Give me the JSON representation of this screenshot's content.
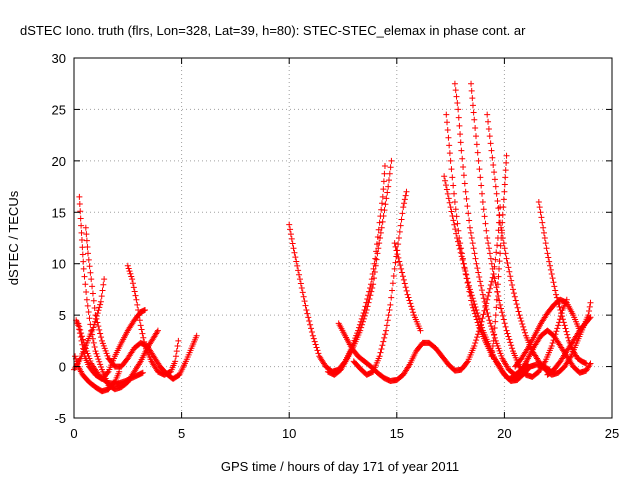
{
  "chart_data": {
    "type": "scatter",
    "title": "dSTEC Iono. truth (flrs, Lon=328, Lat=39, h=80): STEC-STEC_elemax in phase cont. ar",
    "xlabel": "GPS time / hours of day 171 of year 2011",
    "ylabel": "dSTEC  / TECUs",
    "xlim": [
      0,
      25
    ],
    "ylim": [
      -5,
      30
    ],
    "xticks": [
      0,
      5,
      10,
      15,
      20,
      25
    ],
    "yticks": [
      -5,
      0,
      5,
      10,
      15,
      20,
      25,
      30
    ],
    "grid": true,
    "marker": "+",
    "color": "#ff0000",
    "series": [
      {
        "points": [
          [
            0.1,
            4.5
          ],
          [
            0.2,
            4.0
          ],
          [
            0.35,
            2.5
          ],
          [
            0.5,
            1.0
          ],
          [
            0.7,
            0.0
          ],
          [
            1.0,
            -0.8
          ],
          [
            1.3,
            -1.2
          ],
          [
            1.6,
            -0.5
          ],
          [
            1.9,
            1.0
          ],
          [
            2.2,
            2.3
          ],
          [
            2.5,
            3.5
          ],
          [
            2.8,
            4.5
          ],
          [
            3.1,
            5.3
          ],
          [
            3.3,
            5.5
          ]
        ]
      },
      {
        "points": [
          [
            0.25,
            16.5
          ],
          [
            0.35,
            13.0
          ],
          [
            0.45,
            9.5
          ],
          [
            0.6,
            6.5
          ],
          [
            0.8,
            3.5
          ],
          [
            1.0,
            1.5
          ],
          [
            1.3,
            -0.3
          ],
          [
            1.6,
            -1.8
          ],
          [
            1.9,
            -2.2
          ],
          [
            2.2,
            -2.0
          ],
          [
            2.5,
            -1.5
          ],
          [
            2.8,
            -0.5
          ],
          [
            3.1,
            0.5
          ],
          [
            3.4,
            1.8
          ],
          [
            3.7,
            2.8
          ],
          [
            3.9,
            3.5
          ]
        ]
      },
      {
        "points": [
          [
            0.55,
            13.5
          ],
          [
            0.65,
            11.0
          ],
          [
            0.8,
            8.5
          ],
          [
            1.0,
            5.0
          ],
          [
            1.3,
            2.5
          ],
          [
            1.6,
            0.8
          ],
          [
            1.9,
            0.0
          ],
          [
            2.2,
            0.0
          ],
          [
            2.5,
            0.8
          ],
          [
            2.8,
            1.8
          ],
          [
            3.1,
            2.3
          ],
          [
            3.4,
            2.0
          ],
          [
            3.7,
            1.0
          ],
          [
            4.0,
            0.0
          ],
          [
            4.3,
            -0.7
          ],
          [
            4.6,
            -1.2
          ],
          [
            4.9,
            -0.8
          ],
          [
            5.2,
            0.5
          ],
          [
            5.5,
            2.0
          ],
          [
            5.7,
            3.0
          ]
        ]
      },
      {
        "points": [
          [
            0.05,
            1.0
          ],
          [
            0.2,
            0.0
          ],
          [
            0.4,
            -0.8
          ],
          [
            0.7,
            -1.5
          ],
          [
            1.0,
            -2.0
          ],
          [
            1.3,
            -2.4
          ],
          [
            1.6,
            -2.2
          ],
          [
            1.9,
            -1.5
          ],
          [
            2.1,
            -0.5
          ]
        ]
      },
      {
        "points": [
          [
            0.0,
            -0.3
          ],
          [
            0.3,
            0.8
          ],
          [
            0.6,
            2.3
          ],
          [
            0.9,
            3.8
          ],
          [
            1.1,
            5.2
          ],
          [
            1.25,
            6.3
          ],
          [
            1.4,
            8.5
          ]
        ]
      },
      {
        "points": [
          [
            2.5,
            9.8
          ],
          [
            2.7,
            8.5
          ],
          [
            2.9,
            6.5
          ],
          [
            3.1,
            4.0
          ],
          [
            3.3,
            2.0
          ],
          [
            3.6,
            0.5
          ],
          [
            3.9,
            -0.5
          ],
          [
            4.2,
            -0.8
          ],
          [
            4.5,
            -0.5
          ],
          [
            4.7,
            0.5
          ],
          [
            4.85,
            2.5
          ]
        ]
      },
      {
        "points": [
          [
            0.2,
            4.2
          ],
          [
            0.5,
            2.0
          ],
          [
            0.8,
            0.3
          ],
          [
            1.2,
            -1.0
          ],
          [
            1.6,
            -1.6
          ],
          [
            2.0,
            -1.7
          ],
          [
            2.4,
            -1.4
          ],
          [
            2.8,
            -1.0
          ],
          [
            3.2,
            -0.6
          ]
        ]
      },
      {
        "points": [
          [
            10.0,
            13.8
          ],
          [
            10.2,
            11.5
          ],
          [
            10.5,
            8.5
          ],
          [
            10.8,
            5.5
          ],
          [
            11.1,
            3.0
          ],
          [
            11.4,
            1.0
          ],
          [
            11.7,
            0.0
          ],
          [
            12.0,
            -0.5
          ],
          [
            12.3,
            -0.3
          ],
          [
            12.6,
            0.5
          ],
          [
            12.9,
            1.8
          ],
          [
            13.2,
            3.5
          ],
          [
            13.5,
            5.5
          ],
          [
            13.8,
            8.0
          ],
          [
            14.0,
            10.5
          ],
          [
            14.2,
            14.0
          ],
          [
            14.35,
            16.5
          ],
          [
            14.45,
            19.5
          ]
        ]
      },
      {
        "points": [
          [
            12.3,
            4.2
          ],
          [
            12.6,
            3.0
          ],
          [
            12.9,
            1.8
          ],
          [
            13.2,
            1.0
          ],
          [
            13.5,
            0.5
          ],
          [
            13.8,
            0.0
          ],
          [
            14.1,
            -0.6
          ],
          [
            14.4,
            -1.1
          ],
          [
            14.7,
            -1.4
          ],
          [
            15.0,
            -1.3
          ],
          [
            15.3,
            -0.8
          ],
          [
            15.6,
            0.2
          ],
          [
            15.9,
            1.5
          ],
          [
            16.2,
            2.3
          ],
          [
            16.5,
            2.3
          ],
          [
            16.8,
            1.8
          ],
          [
            17.1,
            1.0
          ],
          [
            17.4,
            0.2
          ],
          [
            17.7,
            -0.4
          ],
          [
            18.0,
            -0.3
          ],
          [
            18.3,
            0.5
          ],
          [
            18.6,
            2.0
          ],
          [
            18.9,
            4.0
          ],
          [
            19.2,
            6.5
          ],
          [
            19.5,
            9.0
          ],
          [
            19.7,
            12.5
          ],
          [
            19.8,
            15.5
          ]
        ]
      },
      {
        "points": [
          [
            11.8,
            -0.5
          ],
          [
            12.1,
            -0.8
          ],
          [
            12.4,
            -0.3
          ],
          [
            12.7,
            0.8
          ],
          [
            13.0,
            2.0
          ],
          [
            13.3,
            3.5
          ],
          [
            13.6,
            5.5
          ],
          [
            13.9,
            8.0
          ],
          [
            14.1,
            11.0
          ],
          [
            14.3,
            13.5
          ],
          [
            14.6,
            17.5
          ],
          [
            14.75,
            20.0
          ]
        ]
      },
      {
        "points": [
          [
            13.0,
            0.5
          ],
          [
            13.3,
            -0.2
          ],
          [
            13.6,
            -0.8
          ],
          [
            13.9,
            -0.5
          ],
          [
            14.2,
            1.0
          ],
          [
            14.5,
            3.5
          ],
          [
            14.7,
            6.0
          ],
          [
            14.9,
            9.5
          ],
          [
            15.1,
            12.5
          ],
          [
            15.3,
            15.5
          ],
          [
            15.45,
            17.0
          ]
        ]
      },
      {
        "points": [
          [
            14.9,
            12.0
          ],
          [
            15.2,
            9.5
          ],
          [
            15.5,
            7.0
          ],
          [
            15.8,
            5.0
          ],
          [
            16.1,
            3.5
          ]
        ]
      },
      {
        "points": [
          [
            17.3,
            24.5
          ],
          [
            17.5,
            20.0
          ],
          [
            17.7,
            16.0
          ],
          [
            17.9,
            12.5
          ],
          [
            18.2,
            9.0
          ],
          [
            18.5,
            6.0
          ],
          [
            18.8,
            4.0
          ],
          [
            19.1,
            2.5
          ],
          [
            19.4,
            1.2
          ],
          [
            19.7,
            0.3
          ],
          [
            20.0,
            -0.8
          ],
          [
            20.3,
            -1.4
          ],
          [
            20.6,
            -1.3
          ],
          [
            20.9,
            -0.7
          ],
          [
            21.2,
            0.0
          ],
          [
            21.5,
            0.2
          ],
          [
            21.8,
            0.0
          ],
          [
            22.1,
            -0.3
          ]
        ]
      },
      {
        "points": [
          [
            17.7,
            27.5
          ],
          [
            17.85,
            25.0
          ],
          [
            18.0,
            21.0
          ],
          [
            18.2,
            17.0
          ],
          [
            18.4,
            13.5
          ],
          [
            18.7,
            10.0
          ],
          [
            19.0,
            7.0
          ],
          [
            19.3,
            4.5
          ],
          [
            19.6,
            2.5
          ],
          [
            19.9,
            0.8
          ],
          [
            20.2,
            -0.3
          ],
          [
            20.5,
            -0.8
          ],
          [
            20.8,
            -0.3
          ],
          [
            21.1,
            0.8
          ],
          [
            21.4,
            2.0
          ],
          [
            21.7,
            3.0
          ],
          [
            22.0,
            3.5
          ],
          [
            22.3,
            3.0
          ],
          [
            22.6,
            2.0
          ],
          [
            22.9,
            1.0
          ],
          [
            23.2,
            0.0
          ],
          [
            23.5,
            -0.6
          ],
          [
            23.8,
            -0.4
          ],
          [
            24.0,
            0.3
          ]
        ]
      },
      {
        "points": [
          [
            18.45,
            27.5
          ],
          [
            18.6,
            24.0
          ],
          [
            18.8,
            20.0
          ],
          [
            19.0,
            16.0
          ],
          [
            19.2,
            12.5
          ],
          [
            19.5,
            9.0
          ],
          [
            19.8,
            6.0
          ],
          [
            20.1,
            3.5
          ],
          [
            20.4,
            1.5
          ],
          [
            20.7,
            0.0
          ],
          [
            21.0,
            -0.8
          ],
          [
            21.3,
            -1.0
          ],
          [
            21.6,
            -0.5
          ],
          [
            21.9,
            0.5
          ],
          [
            22.2,
            2.0
          ],
          [
            22.5,
            4.0
          ],
          [
            22.7,
            5.5
          ],
          [
            22.9,
            6.5
          ]
        ]
      },
      {
        "points": [
          [
            19.2,
            24.5
          ],
          [
            19.4,
            21.0
          ],
          [
            19.6,
            17.5
          ],
          [
            19.8,
            14.0
          ],
          [
            20.1,
            10.5
          ],
          [
            20.4,
            7.5
          ],
          [
            20.7,
            5.0
          ],
          [
            21.0,
            3.0
          ],
          [
            21.3,
            1.5
          ],
          [
            21.6,
            0.5
          ],
          [
            21.9,
            -0.3
          ],
          [
            22.2,
            -0.8
          ],
          [
            22.5,
            -0.6
          ],
          [
            22.8,
            0.0
          ],
          [
            23.1,
            1.0
          ],
          [
            23.4,
            2.5
          ],
          [
            23.7,
            4.0
          ],
          [
            23.9,
            5.0
          ],
          [
            24.0,
            6.2
          ]
        ]
      },
      {
        "points": [
          [
            17.2,
            18.5
          ],
          [
            17.5,
            15.5
          ],
          [
            17.8,
            12.5
          ],
          [
            18.1,
            10.0
          ],
          [
            18.4,
            7.5
          ],
          [
            18.7,
            5.5
          ],
          [
            19.0,
            3.5
          ],
          [
            19.3,
            2.0
          ],
          [
            19.6,
            0.5
          ],
          [
            19.9,
            -0.5
          ],
          [
            20.2,
            -1.2
          ],
          [
            20.5,
            -1.0
          ],
          [
            20.8,
            -0.3
          ],
          [
            21.1,
            0.2
          ]
        ]
      },
      {
        "points": [
          [
            20.1,
            20.5
          ],
          [
            20.0,
            17.0
          ],
          [
            19.9,
            14.0
          ],
          [
            19.8,
            11.0
          ],
          [
            19.7,
            8.0
          ],
          [
            19.6,
            5.0
          ],
          [
            19.5,
            2.5
          ],
          [
            19.4,
            1.0
          ]
        ]
      },
      {
        "points": [
          [
            21.6,
            16.0
          ],
          [
            21.8,
            13.5
          ],
          [
            22.0,
            11.0
          ],
          [
            22.2,
            9.0
          ],
          [
            22.4,
            7.0
          ],
          [
            22.6,
            5.5
          ],
          [
            22.8,
            4.0
          ],
          [
            23.0,
            2.5
          ],
          [
            23.2,
            1.5
          ],
          [
            23.4,
            0.8
          ],
          [
            23.6,
            0.5
          ],
          [
            23.8,
            0.3
          ]
        ]
      },
      {
        "points": [
          [
            20.5,
            0.0
          ],
          [
            20.8,
            0.8
          ],
          [
            21.1,
            1.8
          ],
          [
            21.4,
            3.0
          ],
          [
            21.7,
            4.2
          ],
          [
            22.0,
            5.2
          ],
          [
            22.3,
            6.0
          ],
          [
            22.6,
            6.5
          ],
          [
            22.9,
            6.2
          ],
          [
            23.2,
            5.0
          ],
          [
            23.5,
            3.5
          ]
        ]
      },
      {
        "points": [
          [
            22.0,
            -0.8
          ],
          [
            22.3,
            -0.3
          ],
          [
            22.6,
            0.5
          ],
          [
            22.9,
            1.5
          ],
          [
            23.2,
            2.5
          ],
          [
            23.5,
            3.5
          ],
          [
            23.8,
            4.3
          ],
          [
            24.0,
            4.8
          ]
        ]
      }
    ]
  }
}
